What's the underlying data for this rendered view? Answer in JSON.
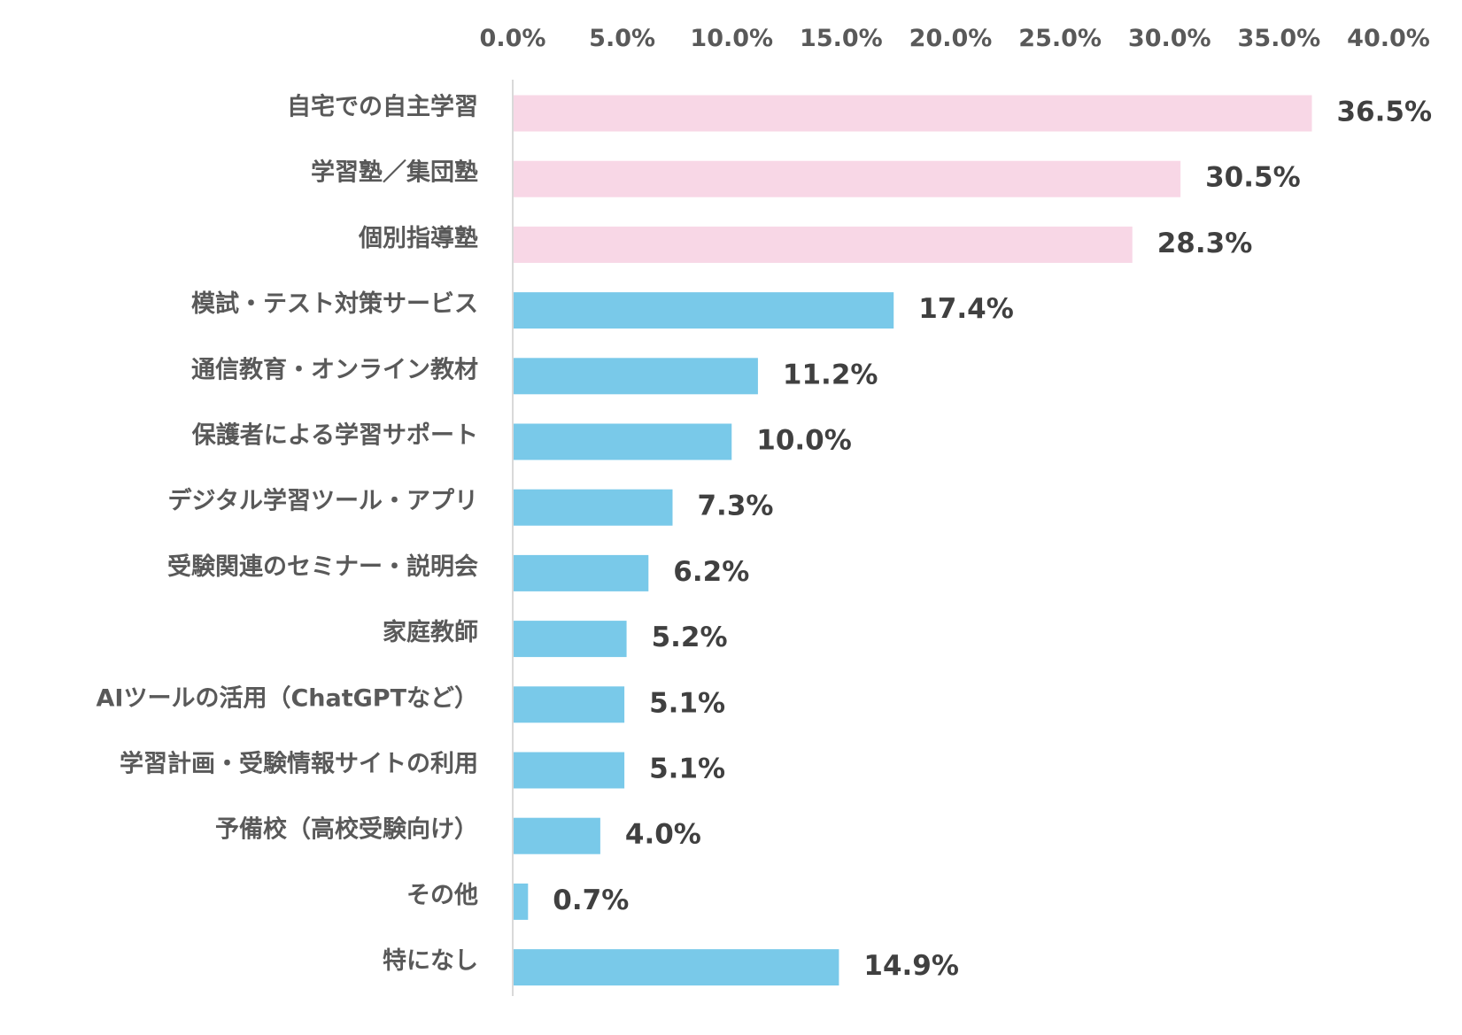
{
  "chart_data": {
    "type": "bar",
    "orientation": "horizontal",
    "title": "",
    "xlabel": "",
    "ylabel": "",
    "xlim": [
      0,
      40
    ],
    "ticks": [
      0,
      5,
      10,
      15,
      20,
      25,
      30,
      35,
      40
    ],
    "tick_labels": [
      "0.0%",
      "5.0%",
      "10.0%",
      "15.0%",
      "20.0%",
      "25.0%",
      "30.0%",
      "35.0%",
      "40.0%"
    ],
    "tick_position": "top",
    "grid": false,
    "legend": "none",
    "categories": [
      "自宅での自主学習",
      "学習塾／集団塾",
      "個別指導塾",
      "模試・テスト対策サービス",
      "通信教育・オンライン教材",
      "保護者による学習サポート",
      "デジタル学習ツール・アプリ",
      "受験関連のセミナー・説明会",
      "家庭教師",
      "AIツールの活用（ChatGPTなど）",
      "学習計画・受験情報サイトの利用",
      "予備校（高校受験向け）",
      "その他",
      "特になし"
    ],
    "values": [
      36.5,
      30.5,
      28.3,
      17.4,
      11.2,
      10.0,
      7.3,
      6.2,
      5.2,
      5.1,
      5.1,
      4.0,
      0.7,
      14.9
    ],
    "value_labels": [
      "36.5%",
      "30.5%",
      "28.3%",
      "17.4%",
      "11.2%",
      "10.0%",
      "7.3%",
      "6.2%",
      "5.2%",
      "5.1%",
      "5.1%",
      "4.0%",
      "0.7%",
      "14.9%"
    ],
    "highlight_count": 3,
    "colors": {
      "highlight": "#f8d7e6",
      "default": "#79c9e9",
      "axis": "#d9d9d9",
      "category_text": "#595959",
      "tick_text": "#595959",
      "value_text": "#404040"
    }
  }
}
